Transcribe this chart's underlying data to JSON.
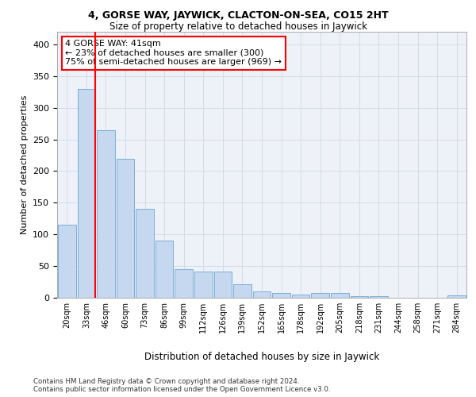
{
  "title1": "4, GORSE WAY, JAYWICK, CLACTON-ON-SEA, CO15 2HT",
  "title2": "Size of property relative to detached houses in Jaywick",
  "xlabel": "Distribution of detached houses by size in Jaywick",
  "ylabel": "Number of detached properties",
  "categories": [
    "20sqm",
    "33sqm",
    "46sqm",
    "60sqm",
    "73sqm",
    "86sqm",
    "99sqm",
    "112sqm",
    "126sqm",
    "139sqm",
    "152sqm",
    "165sqm",
    "178sqm",
    "192sqm",
    "205sqm",
    "218sqm",
    "231sqm",
    "244sqm",
    "258sqm",
    "271sqm",
    "284sqm"
  ],
  "values": [
    115,
    330,
    265,
    220,
    140,
    90,
    45,
    42,
    41,
    21,
    10,
    7,
    5,
    7,
    7,
    3,
    2,
    0,
    0,
    0,
    4
  ],
  "bar_color": "#c5d8f0",
  "bar_edge_color": "#7bafd4",
  "grid_color": "#d0dce8",
  "bg_color": "#eef2f8",
  "annotation_text": "4 GORSE WAY: 41sqm\n← 23% of detached houses are smaller (300)\n75% of semi-detached houses are larger (969) →",
  "annotation_box_color": "white",
  "annotation_box_edge": "red",
  "footer": "Contains HM Land Registry data © Crown copyright and database right 2024.\nContains public sector information licensed under the Open Government Licence v3.0.",
  "ylim": [
    0,
    420
  ],
  "yticks": [
    0,
    50,
    100,
    150,
    200,
    250,
    300,
    350,
    400
  ],
  "red_line_x": 1.45
}
